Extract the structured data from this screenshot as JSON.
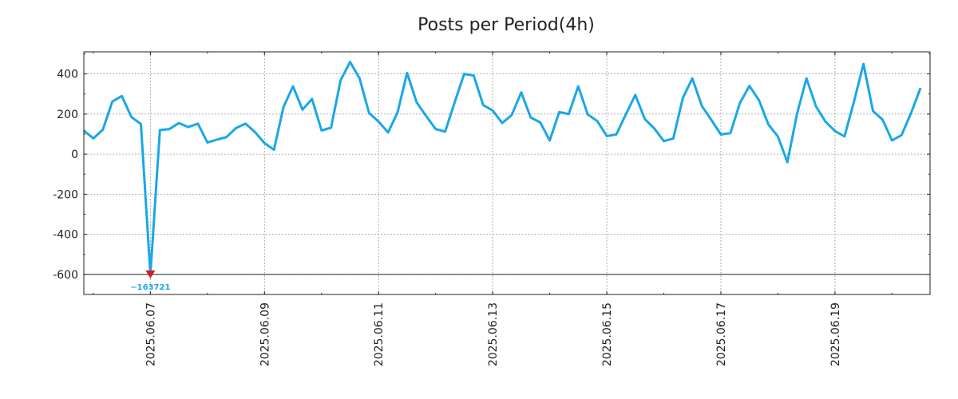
{
  "chart_data": {
    "type": "line",
    "title": "Posts per Period(4h)",
    "xlabel": "",
    "ylabel": "",
    "y_ticks": [
      400,
      200,
      0,
      -200,
      -400,
      -600
    ],
    "y_tick_labels": [
      "400",
      "200",
      "0",
      "-200",
      "-400",
      "-600"
    ],
    "x_ticks": [
      "2025.06.07",
      "2025.06.09",
      "2025.06.11",
      "2025.06.13",
      "2025.06.15",
      "2025.06.17",
      "2025.06.19"
    ],
    "x_range": [
      "2025.06.05 20:00",
      "2025.06.20 16:00"
    ],
    "ylim": [
      -700,
      510
    ],
    "grid": true,
    "colors": {
      "series": "#1aa7e6",
      "marker": "#cc2222",
      "baseline": "#222222",
      "annotation": "#1aa7e6"
    },
    "series": [
      {
        "x_start": "2025.06.05 20:00",
        "x_step_hours": 4,
        "values": [
          118,
          78,
          122,
          262,
          290,
          185,
          150,
          -600,
          120,
          125,
          155,
          135,
          152,
          58,
          72,
          85,
          130,
          152,
          110,
          55,
          22,
          235,
          338,
          222,
          275,
          118,
          132,
          368,
          460,
          378,
          205,
          162,
          108,
          208,
          405,
          258,
          190,
          125,
          112,
          258,
          400,
          392,
          245,
          218,
          155,
          195,
          308,
          182,
          158,
          68,
          210,
          200,
          338,
          198,
          165,
          90,
          98,
          198,
          295,
          175,
          128,
          65,
          78,
          280,
          378,
          240,
          170,
          98,
          105,
          255,
          340,
          270,
          148,
          88,
          -40,
          200,
          378,
          238,
          162,
          115,
          88,
          262,
          450,
          215,
          172,
          68,
          95,
          205,
          330
        ]
      }
    ],
    "annotation": {
      "label": "−163721",
      "at_index": 7,
      "value": -600
    },
    "reference_line": -600
  }
}
